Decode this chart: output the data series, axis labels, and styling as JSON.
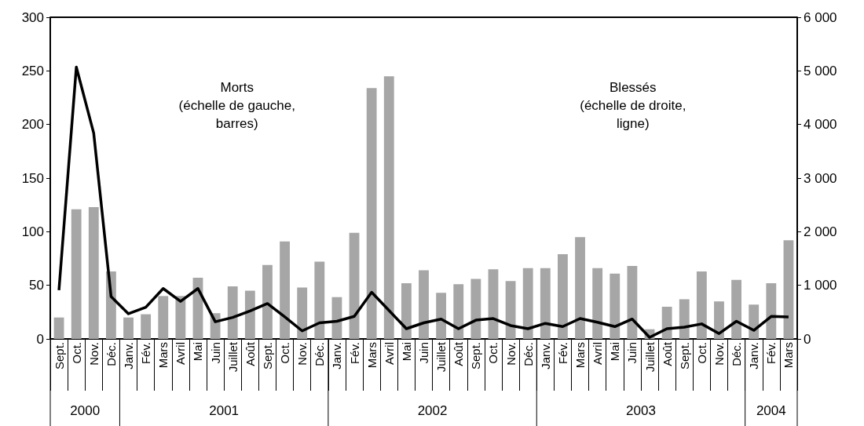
{
  "chart_data": {
    "type": "bar",
    "categories": [
      "Sept.",
      "Oct.",
      "Nov.",
      "Déc.",
      "Janv.",
      "Fév.",
      "Mars",
      "Avril",
      "Mai",
      "Juin",
      "Juillet",
      "Août",
      "Sept.",
      "Oct.",
      "Nov.",
      "Déc.",
      "Janv.",
      "Fév.",
      "Mars",
      "Avril",
      "Mai",
      "Juin",
      "Juillet",
      "Août",
      "Sept.",
      "Oct.",
      "Nov.",
      "Déc.",
      "Janv.",
      "Fév.",
      "Mars",
      "Avril",
      "Mai",
      "Juin",
      "Juillet",
      "Août",
      "Sept.",
      "Oct.",
      "Nov.",
      "Déc.",
      "Janv.",
      "Fév.",
      "Mars"
    ],
    "series": [
      {
        "color": "#a6a6a6",
        "values": [
          20,
          121,
          123,
          63,
          20,
          23,
          40,
          40,
          57,
          24,
          49,
          45,
          69,
          91,
          48,
          72,
          39,
          99,
          234,
          245,
          52,
          64,
          43,
          51,
          56,
          65,
          54,
          66,
          66,
          79,
          95,
          66,
          61,
          68,
          9,
          30,
          37,
          63,
          35,
          55,
          32,
          52,
          92
        ]
      },
      {
        "type": "line",
        "axis": "y2",
        "color": "#000000",
        "values": [
          910,
          5070,
          3840,
          790,
          470,
          590,
          940,
          700,
          940,
          320,
          400,
          520,
          660,
          410,
          150,
          300,
          330,
          420,
          870,
          530,
          190,
          300,
          370,
          190,
          350,
          380,
          250,
          190,
          290,
          230,
          380,
          310,
          230,
          370,
          30,
          190,
          220,
          280,
          100,
          330,
          160,
          420,
          410
        ]
      }
    ],
    "ylim": [
      0,
      300
    ],
    "yticks": [
      0,
      50,
      100,
      150,
      200,
      250,
      300
    ],
    "y2lim": [
      0,
      6000
    ],
    "y2ticks": [
      {
        "value": 0,
        "label": "0"
      },
      {
        "value": 1000,
        "label": "1 000"
      },
      {
        "value": 2000,
        "label": "2 000"
      },
      {
        "value": 3000,
        "label": "3 000"
      },
      {
        "value": 4000,
        "label": "4 000"
      },
      {
        "value": 5000,
        "label": "5 000"
      },
      {
        "value": 6000,
        "label": "6 000"
      }
    ],
    "annotations": [
      "Morts\n(échelle de gauche,\nbarres)",
      "Blessés\n(échelle de droite,\nligne)",
      "2000",
      "2001",
      "2002",
      "2003",
      "2004"
    ],
    "grid": false,
    "marker": "none",
    "line_style": "solid"
  }
}
